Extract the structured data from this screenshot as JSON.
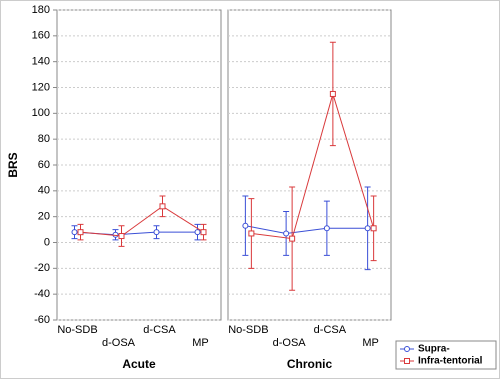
{
  "chart_data": [
    {
      "type": "line",
      "ylabel": "BRS",
      "xlabel": "Acute",
      "categories": [
        "No-SDB",
        "d-OSA",
        "d-CSA",
        "MP"
      ],
      "ylim": [
        -60,
        180
      ],
      "yticks": [
        -60,
        -40,
        -20,
        0,
        20,
        40,
        60,
        80,
        100,
        120,
        140,
        160,
        180
      ],
      "grid": true,
      "legend": "bottom-right",
      "series": [
        {
          "name": "Supra-",
          "color": "#3a4fd6",
          "marker": "circle",
          "values": [
            8,
            6,
            8,
            8
          ],
          "errors": [
            5,
            4,
            5,
            6
          ]
        },
        {
          "name": "Infra-tentorial",
          "color": "#d9393b",
          "marker": "square",
          "values": [
            8,
            5,
            28,
            8
          ],
          "errors": [
            6,
            8,
            8,
            6
          ]
        }
      ]
    },
    {
      "type": "line",
      "xlabel": "Chronic",
      "categories": [
        "No-SDB",
        "d-OSA",
        "d-CSA",
        "MP"
      ],
      "ylim": [
        -60,
        180
      ],
      "yticks": [
        -60,
        -40,
        -20,
        0,
        20,
        40,
        60,
        80,
        100,
        120,
        140,
        160,
        180
      ],
      "grid": true,
      "series": [
        {
          "color": "#3a4fd6",
          "marker": "circle",
          "values": [
            13,
            7,
            11,
            11
          ],
          "errors": [
            23,
            17,
            21,
            32
          ]
        },
        {
          "color": "#d9393b",
          "marker": "square",
          "values": [
            7,
            3,
            115,
            11
          ],
          "errors": [
            27,
            40,
            40,
            25
          ]
        }
      ]
    }
  ]
}
